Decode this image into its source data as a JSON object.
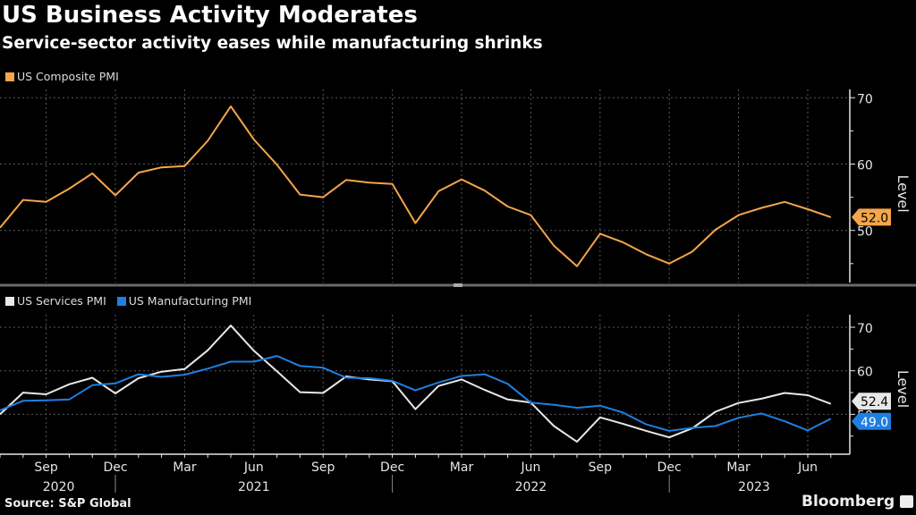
{
  "header": {
    "title": "US Business Activity Moderates",
    "subtitle": "Service-sector activity eases while manufacturing shrinks"
  },
  "footer": {
    "source": "Source: S&P Global",
    "brand": "Bloomberg",
    "brand_icon": "bloomberg-chart-icon"
  },
  "colors": {
    "composite": "#f5a54a",
    "services": "#e8e8e8",
    "manufacturing": "#1e7fe0",
    "grid": "#5a5a5a",
    "axis": "#e6e6e6",
    "background": "#000000"
  },
  "chart_data": [
    {
      "type": "line",
      "title": "US Composite PMI",
      "ylabel": "Level",
      "xlabel": "",
      "ylim": [
        42,
        72
      ],
      "yticks": [
        50,
        60,
        70
      ],
      "grid": true,
      "legend": "top-left",
      "x": [
        "2020-07",
        "2020-08",
        "2020-09",
        "2020-10",
        "2020-11",
        "2020-12",
        "2021-01",
        "2021-02",
        "2021-03",
        "2021-04",
        "2021-05",
        "2021-06",
        "2021-07",
        "2021-08",
        "2021-09",
        "2021-10",
        "2021-11",
        "2021-12",
        "2022-01",
        "2022-02",
        "2022-03",
        "2022-04",
        "2022-05",
        "2022-06",
        "2022-07",
        "2022-08",
        "2022-09",
        "2022-10",
        "2022-11",
        "2022-12",
        "2023-01",
        "2023-02",
        "2023-03",
        "2023-04",
        "2023-05",
        "2023-06",
        "2023-07"
      ],
      "series": [
        {
          "name": "US Composite PMI",
          "color_key": "composite",
          "last_label": "52.0",
          "values": [
            50.4,
            54.6,
            54.3,
            56.3,
            58.6,
            55.3,
            58.7,
            59.5,
            59.7,
            63.5,
            68.7,
            63.7,
            59.9,
            55.4,
            55.0,
            57.6,
            57.2,
            57.0,
            51.1,
            55.9,
            57.7,
            56.0,
            53.6,
            52.3,
            47.7,
            44.6,
            49.5,
            48.2,
            46.4,
            45.0,
            46.8,
            50.1,
            52.3,
            53.4,
            54.3,
            53.2,
            52.0
          ]
        }
      ]
    },
    {
      "type": "line",
      "title": "US Services PMI vs US Manufacturing PMI",
      "ylabel": "Level",
      "xlabel": "",
      "ylim": [
        41,
        73
      ],
      "yticks": [
        50,
        60,
        70
      ],
      "grid": true,
      "legend": "top-left",
      "x": [
        "2020-07",
        "2020-08",
        "2020-09",
        "2020-10",
        "2020-11",
        "2020-12",
        "2021-01",
        "2021-02",
        "2021-03",
        "2021-04",
        "2021-05",
        "2021-06",
        "2021-07",
        "2021-08",
        "2021-09",
        "2021-10",
        "2021-11",
        "2021-12",
        "2022-01",
        "2022-02",
        "2022-03",
        "2022-04",
        "2022-05",
        "2022-06",
        "2022-07",
        "2022-08",
        "2022-09",
        "2022-10",
        "2022-11",
        "2022-12",
        "2023-01",
        "2023-02",
        "2023-03",
        "2023-04",
        "2023-05",
        "2023-06",
        "2023-07"
      ],
      "xtick_labels": [
        {
          "month": "2020-09",
          "label": "Sep",
          "year": "2020"
        },
        {
          "month": "2020-12",
          "label": "Dec"
        },
        {
          "month": "2021-03",
          "label": "Mar"
        },
        {
          "month": "2021-06",
          "label": "Jun",
          "year": "2021"
        },
        {
          "month": "2021-09",
          "label": "Sep"
        },
        {
          "month": "2021-12",
          "label": "Dec"
        },
        {
          "month": "2022-03",
          "label": "Mar"
        },
        {
          "month": "2022-06",
          "label": "Jun",
          "year": "2022"
        },
        {
          "month": "2022-09",
          "label": "Sep"
        },
        {
          "month": "2022-12",
          "label": "Dec"
        },
        {
          "month": "2023-03",
          "label": "Mar"
        },
        {
          "month": "2023-06",
          "label": "Jun",
          "year": "2023"
        }
      ],
      "series": [
        {
          "name": "US Services PMI",
          "color_key": "services",
          "last_label": "52.4",
          "values": [
            50.0,
            55.0,
            54.6,
            56.9,
            58.4,
            54.8,
            58.3,
            59.8,
            60.4,
            64.7,
            70.4,
            64.6,
            59.9,
            55.1,
            54.9,
            58.7,
            58.0,
            57.6,
            51.2,
            56.5,
            58.0,
            55.6,
            53.4,
            52.7,
            47.3,
            43.7,
            49.3,
            47.8,
            46.2,
            44.7,
            46.8,
            50.6,
            52.6,
            53.6,
            54.9,
            54.4,
            52.4
          ]
        },
        {
          "name": "US Manufacturing PMI",
          "color_key": "manufacturing",
          "last_label": "49.0",
          "values": [
            50.9,
            53.1,
            53.2,
            53.4,
            56.7,
            57.1,
            59.2,
            58.6,
            59.1,
            60.5,
            62.1,
            62.1,
            63.4,
            61.1,
            60.7,
            58.4,
            58.3,
            57.7,
            55.5,
            57.3,
            58.8,
            59.2,
            57.0,
            52.7,
            52.2,
            51.5,
            52.0,
            50.4,
            47.7,
            46.2,
            46.9,
            47.3,
            49.2,
            50.2,
            48.4,
            46.3,
            49.0
          ]
        }
      ]
    }
  ]
}
